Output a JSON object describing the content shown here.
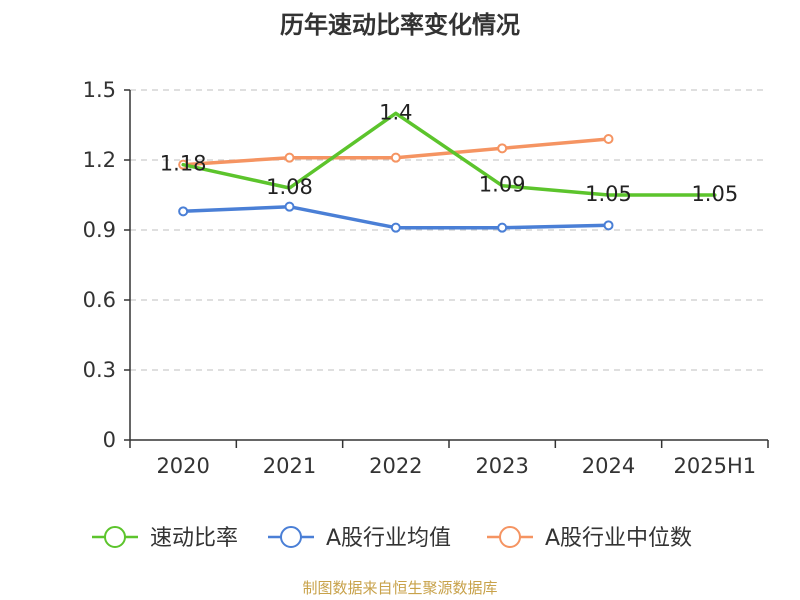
{
  "chart_data": {
    "type": "line",
    "title": "历年速动比率变化情况",
    "categories": [
      "2020",
      "2021",
      "2022",
      "2023",
      "2024",
      "2025H1"
    ],
    "ylim": [
      0,
      1.5
    ],
    "yticks": [
      0,
      0.3,
      0.6,
      0.9,
      1.2,
      1.5
    ],
    "ytick_labels": [
      "0",
      "0.3",
      "0.6",
      "0.9",
      "1.2",
      "1.5"
    ],
    "grid": true,
    "legend_position": "bottom",
    "series": [
      {
        "name": "速动比率",
        "color": "#5cc42c",
        "values": [
          1.18,
          1.08,
          1.4,
          1.09,
          1.05,
          1.05
        ],
        "labels": [
          "1.18",
          "1.08",
          "1.4",
          "1.09",
          "1.05",
          "1.05"
        ]
      },
      {
        "name": "A股行业均值",
        "color": "#4a7fd6",
        "values": [
          0.98,
          1.0,
          0.91,
          0.91,
          0.92,
          null
        ]
      },
      {
        "name": "A股行业中位数",
        "color": "#f59462",
        "values": [
          1.18,
          1.21,
          1.21,
          1.25,
          1.29,
          null
        ]
      }
    ]
  },
  "source": "制图数据来自恒生聚源数据库"
}
